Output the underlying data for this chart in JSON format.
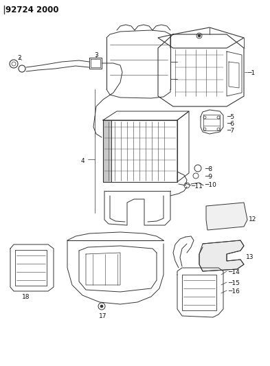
{
  "title": "92724 2000",
  "bg_color": "#ffffff",
  "line_color": "#333333",
  "label_color": "#111111",
  "label_fontsize": 6.5,
  "fig_width": 3.93,
  "fig_height": 5.33,
  "dpi": 100
}
